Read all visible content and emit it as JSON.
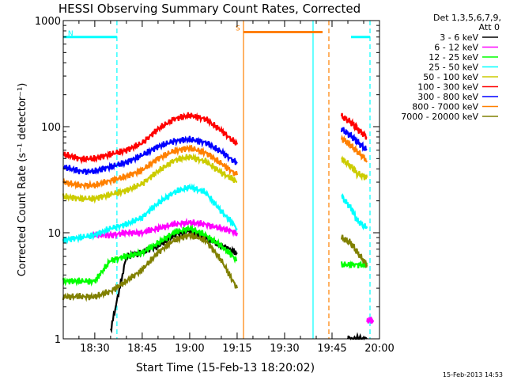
{
  "chart_data": {
    "type": "line",
    "title": "HESSI Observing Summary Count Rates, Corrected",
    "xlabel": "Start Time (15-Feb-13 18:20:02)",
    "ylabel": "Corrected Count Rate (s⁻¹ detector⁻¹)",
    "yscale": "log",
    "ylim": [
      1,
      1000
    ],
    "xlim": [
      "18:20:02",
      "20:00"
    ],
    "x_ticks": [
      "18:30",
      "18:45",
      "19:00",
      "19:15",
      "19:30",
      "19:45",
      "20:00"
    ],
    "y_ticks": [
      "1",
      "10",
      "100",
      "1000"
    ],
    "footer_date": "15-Feb-2013 14:53",
    "legend": {
      "header1": "Det 1,3,5,6,7,9,",
      "header2": "Att 0",
      "placement": "right"
    },
    "series": [
      {
        "name": "3 - 6 keV",
        "color": "#000000",
        "segments": [
          {
            "x": [
              "18:35",
              "18:40",
              "18:45",
              "18:50",
              "18:55",
              "19:00",
              "19:05",
              "19:10",
              "19:15"
            ],
            "y": [
              1.2,
              6,
              6.5,
              7.5,
              9.5,
              10.5,
              9,
              7.5,
              6.5
            ]
          },
          {
            "x": [
              "19:50",
              "19:56"
            ],
            "y": [
              1,
              1
            ]
          }
        ]
      },
      {
        "name": "6 - 12 keV",
        "color": "#ff00ff",
        "segments": [
          {
            "x": [
              "18:29",
              "18:35",
              "18:40",
              "18:45",
              "18:50",
              "18:55",
              "19:00",
              "19:05",
              "19:10",
              "19:15"
            ],
            "y": [
              9.5,
              9.5,
              10,
              10,
              11,
              12,
              12.5,
              12,
              11,
              10
            ]
          },
          {
            "x": [
              "19:56",
              "19:58"
            ],
            "y": [
              1.5,
              1.5
            ]
          }
        ]
      },
      {
        "name": "12 - 25 keV",
        "color": "#00ff00",
        "segments": [
          {
            "x": [
              "18:20",
              "18:25",
              "18:30",
              "18:35",
              "18:40",
              "18:45",
              "18:50",
              "18:55",
              "19:00",
              "19:05",
              "19:10",
              "19:15"
            ],
            "y": [
              3.5,
              3.5,
              3.5,
              5.5,
              6,
              6.5,
              8,
              10,
              11,
              9.5,
              7.5,
              5.5
            ]
          },
          {
            "x": [
              "19:48",
              "19:53",
              "19:56"
            ],
            "y": [
              5,
              5,
              5
            ]
          }
        ]
      },
      {
        "name": "25 - 50 keV",
        "color": "#00ffff",
        "segments": [
          {
            "x": [
              "18:20",
              "18:25",
              "18:30",
              "18:35",
              "18:40",
              "18:45",
              "18:50",
              "18:55",
              "19:00",
              "19:05",
              "19:10",
              "19:15"
            ],
            "y": [
              8.5,
              9,
              9.5,
              11,
              12,
              14,
              19,
              24,
              27,
              24,
              16,
              11
            ]
          },
          {
            "x": [
              "19:48",
              "19:51",
              "19:53",
              "19:56"
            ],
            "y": [
              22,
              17,
              13,
              11
            ]
          }
        ]
      },
      {
        "name": "50 - 100 keV",
        "color": "#cccc00",
        "segments": [
          {
            "x": [
              "18:20",
              "18:25",
              "18:30",
              "18:35",
              "18:40",
              "18:45",
              "18:50",
              "18:55",
              "19:00",
              "19:05",
              "19:10",
              "19:15"
            ],
            "y": [
              22,
              21,
              21,
              23,
              25,
              29,
              38,
              48,
              52,
              47,
              37,
              30
            ]
          },
          {
            "x": [
              "19:48",
              "19:51",
              "19:53",
              "19:56"
            ],
            "y": [
              50,
              42,
              36,
              33
            ]
          }
        ]
      },
      {
        "name": "100 - 300 keV",
        "color": "#ff0000",
        "segments": [
          {
            "x": [
              "18:20",
              "18:25",
              "18:30",
              "18:35",
              "18:40",
              "18:45",
              "18:50",
              "18:55",
              "19:00",
              "19:05",
              "19:10",
              "19:15"
            ],
            "y": [
              55,
              50,
              50,
              55,
              60,
              70,
              95,
              118,
              128,
              118,
              92,
              68
            ]
          },
          {
            "x": [
              "19:48",
              "19:51",
              "19:53",
              "19:56"
            ],
            "y": [
              125,
              110,
              95,
              80
            ]
          }
        ]
      },
      {
        "name": "300 - 800 keV",
        "color": "#0000ff",
        "segments": [
          {
            "x": [
              "18:20",
              "18:25",
              "18:30",
              "18:35",
              "18:40",
              "18:45",
              "18:50",
              "18:55",
              "19:00",
              "19:05",
              "19:10",
              "19:15"
            ],
            "y": [
              42,
              38,
              38,
              42,
              46,
              54,
              65,
              73,
              76,
              71,
              58,
              45
            ]
          },
          {
            "x": [
              "19:48",
              "19:51",
              "19:53",
              "19:56"
            ],
            "y": [
              95,
              82,
              72,
              60
            ]
          }
        ]
      },
      {
        "name": "800 - 7000 keV",
        "color": "#ff8000",
        "segments": [
          {
            "x": [
              "18:20",
              "18:25",
              "18:30",
              "18:35",
              "18:40",
              "18:45",
              "18:50",
              "18:55",
              "19:00",
              "19:05",
              "19:10",
              "19:15"
            ],
            "y": [
              30,
              28,
              28,
              31,
              34,
              39,
              50,
              59,
              63,
              57,
              45,
              35
            ]
          },
          {
            "x": [
              "19:48",
              "19:51",
              "19:53",
              "19:56"
            ],
            "y": [
              78,
              66,
              58,
              48
            ]
          }
        ]
      },
      {
        "name": "7000 - 20000 keV",
        "color": "#808000",
        "segments": [
          {
            "x": [
              "18:20",
              "18:25",
              "18:30",
              "18:35",
              "18:40",
              "18:45",
              "18:50",
              "18:55",
              "19:00",
              "19:05",
              "19:10",
              "19:15"
            ],
            "y": [
              2.5,
              2.5,
              2.5,
              2.8,
              3.5,
              4.5,
              6.5,
              8.5,
              9.5,
              8.5,
              5.5,
              3
            ]
          },
          {
            "x": [
              "19:48",
              "19:51",
              "19:53",
              "19:56"
            ],
            "y": [
              9,
              8,
              6.5,
              5
            ]
          }
        ]
      }
    ],
    "attenuator_bars": [
      {
        "x": [
          "18:20",
          "18:37"
        ],
        "y": 700,
        "color": "#00ffff",
        "label": "N"
      },
      {
        "x": [
          "19:51",
          "19:57"
        ],
        "y": 700,
        "color": "#00ffff",
        "label": ""
      },
      {
        "x": [
          "19:17",
          "19:42"
        ],
        "y": 780,
        "color": "#ff8000",
        "label": "S"
      }
    ],
    "vlines": [
      {
        "x": "18:37",
        "color": "#00ffff",
        "style": "dashed"
      },
      {
        "x": "19:17",
        "color": "#ff8000",
        "style": "solid"
      },
      {
        "x": "19:39",
        "color": "#00ffff",
        "style": "solid"
      },
      {
        "x": "19:44",
        "color": "#ff8000",
        "style": "dashed"
      },
      {
        "x": "19:57",
        "color": "#00ffff",
        "style": "dashed"
      }
    ]
  }
}
